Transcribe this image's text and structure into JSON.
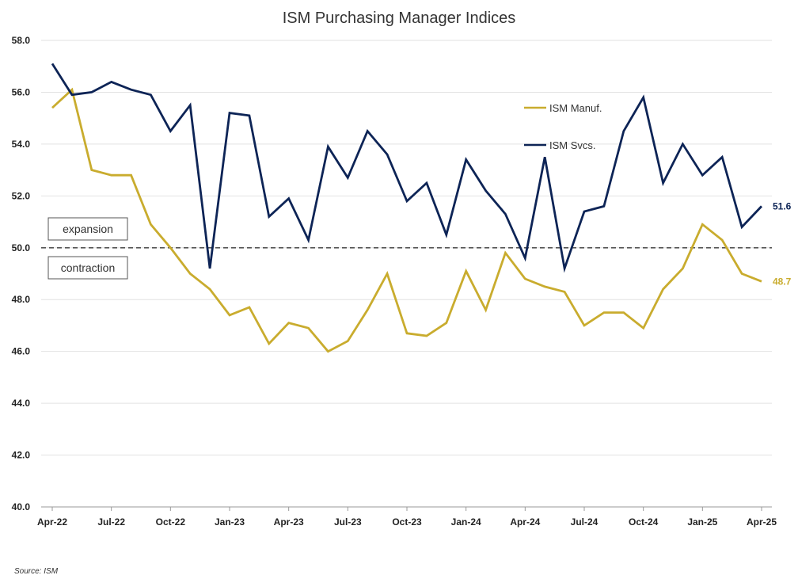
{
  "chart_data": {
    "type": "line",
    "title": "ISM Purchasing Manager Indices",
    "xlabel": "",
    "ylabel": "",
    "ylim": [
      40,
      58
    ],
    "y_ticks": [
      "40.0",
      "42.0",
      "44.0",
      "46.0",
      "48.0",
      "50.0",
      "52.0",
      "54.0",
      "56.0",
      "58.0"
    ],
    "x_tick_labels": [
      "Apr-22",
      "Jul-22",
      "Oct-22",
      "Jan-23",
      "Apr-23",
      "Jul-23",
      "Oct-23",
      "Jan-24",
      "Apr-24",
      "Jul-24",
      "Oct-24",
      "Jan-25",
      "Apr-25"
    ],
    "x": [
      "Apr-22",
      "May-22",
      "Jun-22",
      "Jul-22",
      "Aug-22",
      "Sep-22",
      "Oct-22",
      "Nov-22",
      "Dec-22",
      "Jan-23",
      "Feb-23",
      "Mar-23",
      "Apr-23",
      "May-23",
      "Jun-23",
      "Jul-23",
      "Aug-23",
      "Sep-23",
      "Oct-23",
      "Nov-23",
      "Dec-23",
      "Jan-24",
      "Feb-24",
      "Mar-24",
      "Apr-24",
      "May-24",
      "Jun-24",
      "Jul-24",
      "Aug-24",
      "Sep-24",
      "Oct-24",
      "Nov-24",
      "Dec-24",
      "Jan-25",
      "Feb-25",
      "Mar-25",
      "Apr-25"
    ],
    "series": [
      {
        "name": "ISM Manuf.",
        "color": "#c9ac2e",
        "end_label": "48.7",
        "values": [
          55.4,
          56.1,
          53.0,
          52.8,
          52.8,
          50.9,
          50.0,
          49.0,
          48.4,
          47.4,
          47.7,
          46.3,
          47.1,
          46.9,
          46.0,
          46.4,
          47.6,
          49.0,
          46.7,
          46.6,
          47.1,
          49.1,
          47.6,
          49.8,
          48.8,
          48.5,
          48.3,
          47.0,
          47.5,
          47.5,
          46.9,
          48.4,
          49.2,
          50.9,
          50.3,
          49.0,
          48.7
        ]
      },
      {
        "name": "ISM Svcs.",
        "color": "#0d2456",
        "end_label": "51.6",
        "values": [
          57.1,
          55.9,
          56.0,
          56.4,
          56.1,
          55.9,
          54.5,
          55.5,
          49.2,
          55.2,
          55.1,
          51.2,
          51.9,
          50.3,
          53.9,
          52.7,
          54.5,
          53.6,
          51.8,
          52.5,
          50.5,
          53.4,
          52.2,
          51.3,
          49.6,
          53.5,
          49.2,
          51.4,
          51.6,
          54.5,
          55.8,
          52.5,
          54.0,
          52.8,
          53.5,
          50.8,
          51.6
        ]
      }
    ],
    "reference_line": {
      "value": 50.0,
      "style": "dashed"
    },
    "annotations": {
      "above": "expansion",
      "below": "contraction"
    },
    "grid": "horizontal",
    "legend_position": "top-right",
    "source": "Source: ISM"
  }
}
